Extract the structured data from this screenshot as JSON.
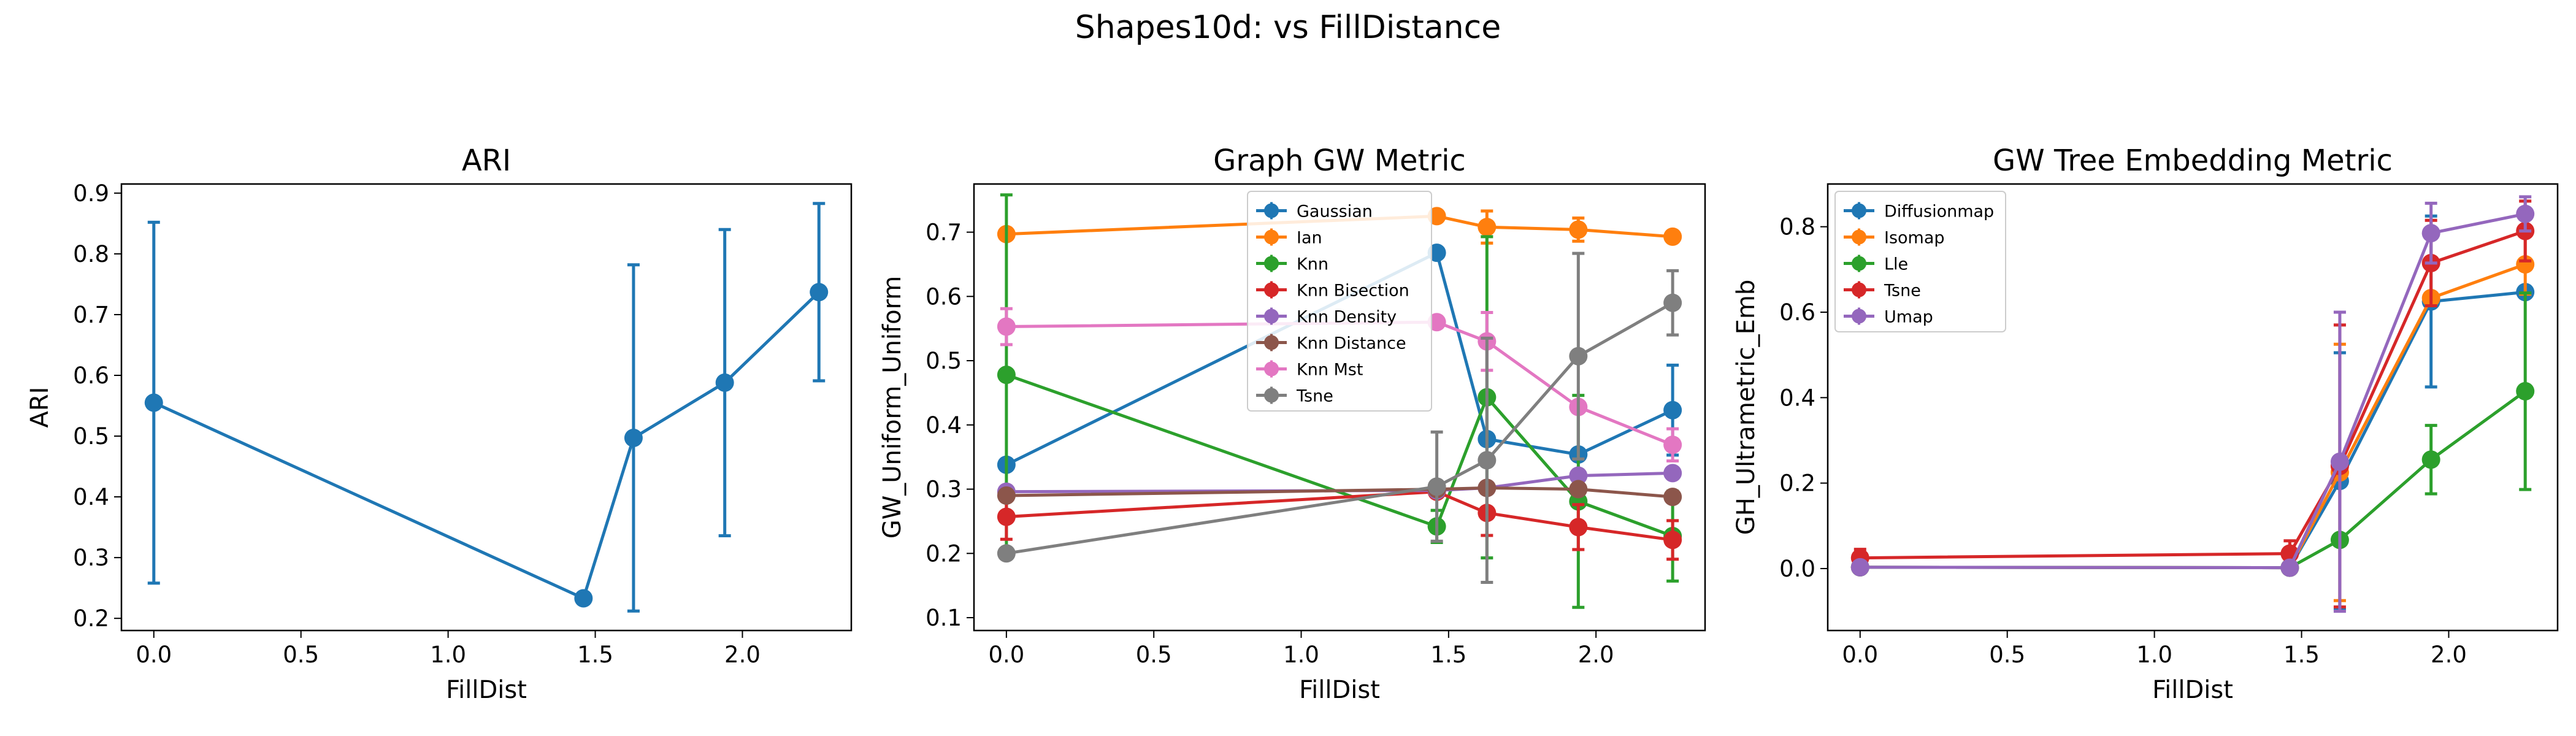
{
  "suptitle": "Shapes10d: vs FillDistance",
  "chart_data": [
    {
      "type": "line",
      "title": "ARI",
      "xlabel": "FillDist",
      "ylabel": "ARI",
      "xlim": [
        -0.11,
        2.37
      ],
      "ylim": [
        0.18,
        0.915
      ],
      "xticks": [
        0.0,
        0.5,
        1.0,
        1.5,
        2.0
      ],
      "xtick_labels": [
        "0.0",
        "0.5",
        "1.0",
        "1.5",
        "2.0"
      ],
      "yticks": [
        0.2,
        0.3,
        0.4,
        0.5,
        0.6,
        0.7,
        0.8,
        0.9
      ],
      "ytick_labels": [
        "0.2",
        "0.3",
        "0.4",
        "0.5",
        "0.6",
        "0.7",
        "0.8",
        "0.9"
      ],
      "grid": false,
      "legend": "none",
      "x": [
        0.0,
        1.46,
        1.63,
        1.94,
        2.26
      ],
      "series": [
        {
          "color": "#1f77b4",
          "values": [
            0.555,
            0.233,
            0.497,
            0.588,
            0.737
          ],
          "err": [
            0.297,
            0.0,
            0.285,
            0.252,
            0.146
          ]
        }
      ]
    },
    {
      "type": "line",
      "title": "Graph GW Metric",
      "xlabel": "FillDist",
      "ylabel": "GW_Uniform_Uniform",
      "xlim": [
        -0.11,
        2.37
      ],
      "ylim": [
        0.08,
        0.775
      ],
      "xticks": [
        0.0,
        0.5,
        1.0,
        1.5,
        2.0
      ],
      "xtick_labels": [
        "0.0",
        "0.5",
        "1.0",
        "1.5",
        "2.0"
      ],
      "yticks": [
        0.1,
        0.2,
        0.3,
        0.4,
        0.5,
        0.6,
        0.7
      ],
      "ytick_labels": [
        "0.1",
        "0.2",
        "0.3",
        "0.4",
        "0.5",
        "0.6",
        "0.7"
      ],
      "grid": false,
      "legend": "top-center",
      "x": [
        0.0,
        1.46,
        1.63,
        1.94,
        2.26
      ],
      "series": [
        {
          "name": "Gaussian",
          "color": "#1f77b4",
          "values": [
            0.338,
            0.668,
            0.378,
            0.354,
            0.423
          ],
          "err": [
            0.0,
            0.0,
            0.0,
            0.0,
            0.07
          ]
        },
        {
          "name": "Ian",
          "color": "#ff7f0e",
          "values": [
            0.697,
            0.725,
            0.708,
            0.704,
            0.693
          ],
          "err": [
            0.0,
            0.0,
            0.025,
            0.018,
            0.0
          ]
        },
        {
          "name": "Knn",
          "color": "#2ca02c",
          "values": [
            0.478,
            0.242,
            0.443,
            0.281,
            0.227
          ],
          "err": [
            0.28,
            0.025,
            0.25,
            0.165,
            0.07
          ]
        },
        {
          "name": "Knn Bisection",
          "color": "#d62728",
          "values": [
            0.257,
            0.296,
            0.263,
            0.241,
            0.221
          ],
          "err": [
            0.035,
            0.0,
            0.035,
            0.035,
            0.03
          ]
        },
        {
          "name": "Knn Density",
          "color": "#9467bd",
          "values": [
            0.296,
            0.298,
            0.302,
            0.321,
            0.325
          ],
          "err": [
            0.0,
            0.0,
            0.0,
            0.0,
            0.0
          ]
        },
        {
          "name": "Knn Distance",
          "color": "#8c564b",
          "values": [
            0.29,
            0.3,
            0.302,
            0.3,
            0.288
          ],
          "err": [
            0.0,
            0.0,
            0.0,
            0.0,
            0.0
          ]
        },
        {
          "name": "Knn Mst",
          "color": "#e377c2",
          "values": [
            0.553,
            0.56,
            0.53,
            0.428,
            0.369
          ],
          "err": [
            0.028,
            0.0,
            0.045,
            0.0,
            0.025
          ]
        },
        {
          "name": "Tsne",
          "color": "#7f7f7f",
          "values": [
            0.2,
            0.304,
            0.345,
            0.507,
            0.59
          ],
          "err": [
            0.0,
            0.085,
            0.19,
            0.16,
            0.05
          ]
        }
      ]
    },
    {
      "type": "line",
      "title": "GW Tree Embedding Metric",
      "xlabel": "FillDist",
      "ylabel": "GH_Ultrametric_Emb",
      "xlim": [
        -0.11,
        2.37
      ],
      "ylim": [
        -0.145,
        0.9
      ],
      "xticks": [
        0.0,
        0.5,
        1.0,
        1.5,
        2.0
      ],
      "xtick_labels": [
        "0.0",
        "0.5",
        "1.0",
        "1.5",
        "2.0"
      ],
      "yticks": [
        0.0,
        0.2,
        0.4,
        0.6,
        0.8
      ],
      "ytick_labels": [
        "0.0",
        "0.2",
        "0.4",
        "0.6",
        "0.8"
      ],
      "grid": false,
      "legend": "top-left",
      "x": [
        0.0,
        1.46,
        1.63,
        1.94,
        2.26
      ],
      "series": [
        {
          "name": "Diffusionmap",
          "color": "#1f77b4",
          "values": [
            0.003,
            0.002,
            0.205,
            0.625,
            0.647
          ],
          "err": [
            0.0,
            0.0,
            0.3,
            0.2,
            0.0
          ]
        },
        {
          "name": "Isomap",
          "color": "#ff7f0e",
          "values": [
            0.003,
            0.002,
            0.225,
            0.633,
            0.712
          ],
          "err": [
            0.0,
            0.0,
            0.3,
            0.0,
            0.07
          ]
        },
        {
          "name": "Lle",
          "color": "#2ca02c",
          "values": [
            0.003,
            0.002,
            0.067,
            0.255,
            0.415
          ],
          "err": [
            0.0,
            0.0,
            0.0,
            0.08,
            0.23
          ]
        },
        {
          "name": "Tsne",
          "color": "#d62728",
          "values": [
            0.025,
            0.035,
            0.24,
            0.715,
            0.79
          ],
          "err": [
            0.02,
            0.03,
            0.33,
            0.1,
            0.07
          ]
        },
        {
          "name": "Umap",
          "color": "#9467bd",
          "values": [
            0.003,
            0.002,
            0.25,
            0.785,
            0.83
          ],
          "err": [
            0.0,
            0.0,
            0.35,
            0.07,
            0.04
          ]
        }
      ]
    }
  ]
}
